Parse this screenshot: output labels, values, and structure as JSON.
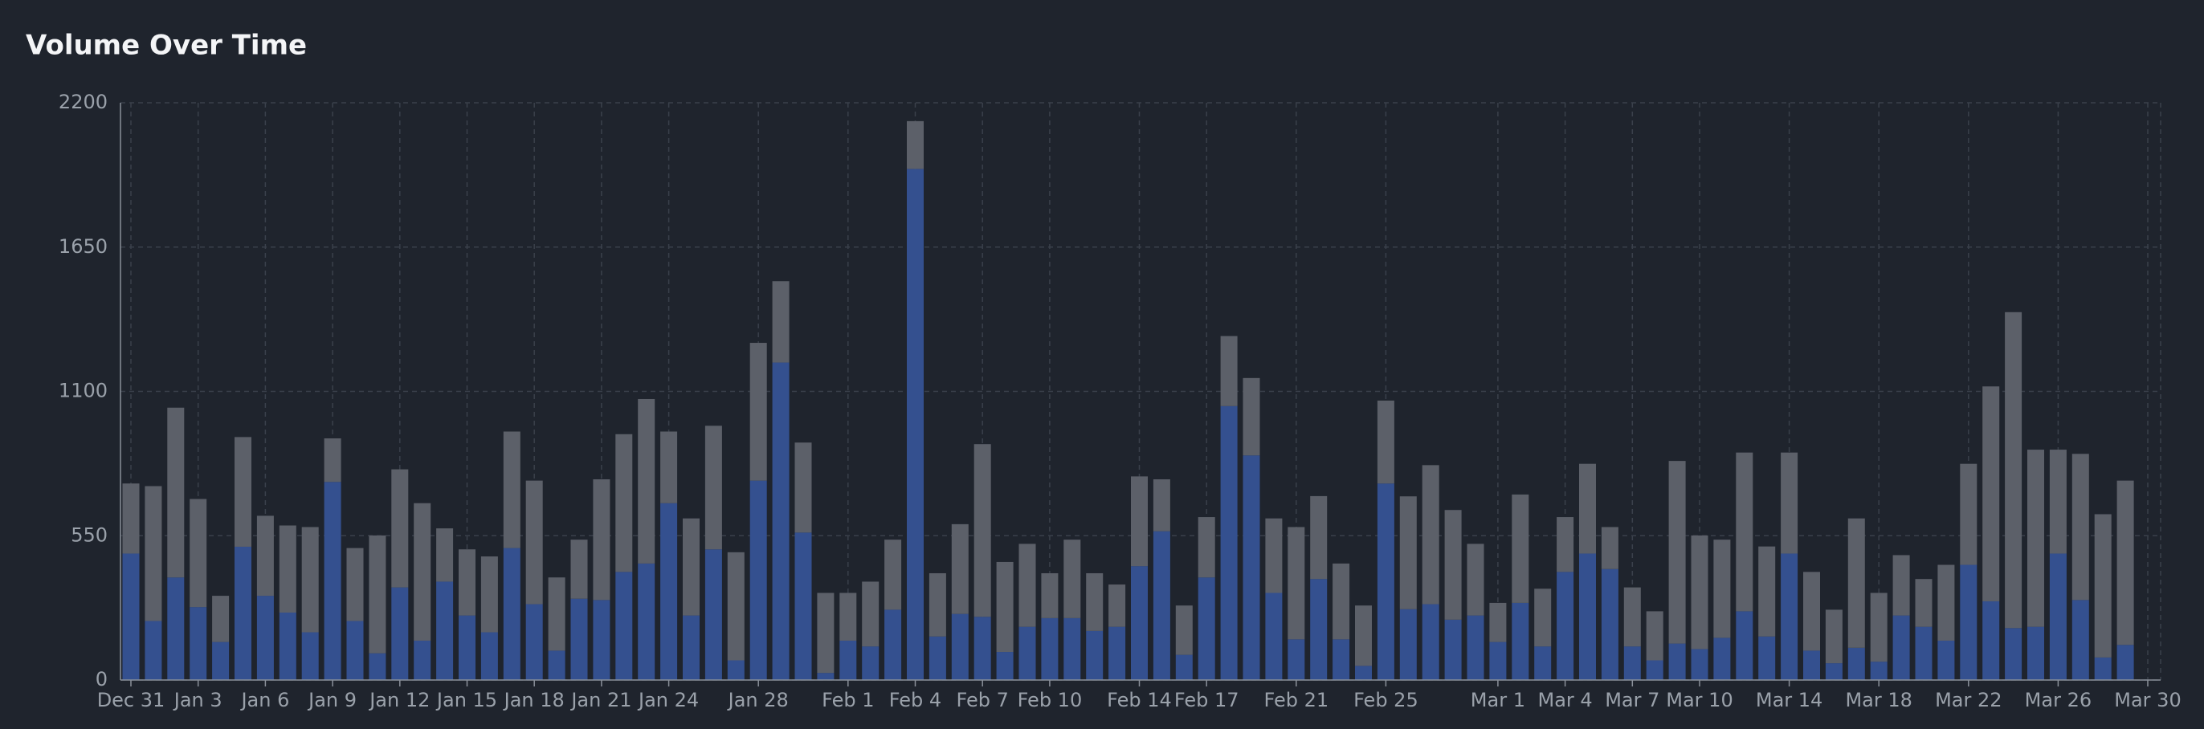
{
  "chart_data": {
    "type": "bar",
    "stacked": true,
    "title": "Volume Over Time",
    "categories": [
      "Dec 31",
      null,
      null,
      "Jan 3",
      null,
      null,
      "Jan 6",
      null,
      null,
      "Jan 9",
      null,
      null,
      "Jan 12",
      null,
      null,
      "Jan 15",
      null,
      null,
      "Jan 18",
      null,
      null,
      "Jan 21",
      null,
      null,
      "Jan 24",
      null,
      null,
      null,
      "Jan 28",
      null,
      null,
      null,
      "Feb 1",
      null,
      null,
      "Feb 4",
      null,
      null,
      "Feb 7",
      null,
      null,
      "Feb 10",
      null,
      null,
      null,
      "Feb 14",
      null,
      null,
      "Feb 17",
      null,
      null,
      null,
      "Feb 21",
      null,
      null,
      null,
      "Feb 25",
      null,
      null,
      null,
      null,
      "Mar 1",
      null,
      null,
      "Mar 4",
      null,
      null,
      "Mar 7",
      null,
      null,
      "Mar 10",
      null,
      null,
      null,
      "Mar 14",
      null,
      null,
      null,
      "Mar 18",
      null,
      null,
      null,
      "Mar 22",
      null,
      null,
      null,
      "Mar 26",
      null,
      null,
      null,
      "Mar 30"
    ],
    "series": [
      {
        "color": "#34508f",
        "values": [
          482,
          225,
          391,
          278,
          145,
          508,
          321,
          257,
          182,
          755,
          225,
          102,
          353,
          150,
          375,
          246,
          182,
          503,
          289,
          112,
          310,
          305,
          412,
          444,
          674,
          246,
          498,
          75,
          760,
          1210,
          562,
          27,
          150,
          128,
          268,
          1948,
          166,
          252,
          241,
          107,
          203,
          236,
          236,
          187,
          203,
          434,
          567,
          96,
          391,
          1044,
          856,
          332,
          155,
          385,
          155,
          54,
          749,
          270,
          289,
          230,
          246,
          145,
          294,
          128,
          412,
          482,
          423,
          128,
          75,
          139,
          118,
          161,
          262,
          166,
          482,
          112,
          64,
          123,
          70,
          246,
          203,
          150,
          439,
          300,
          198,
          203,
          482,
          305,
          86,
          134,
          null
        ]
      },
      {
        "color": "#5c6069",
        "values": [
          267,
          514,
          647,
          412,
          176,
          418,
          305,
          332,
          401,
          166,
          278,
          449,
          450,
          524,
          203,
          252,
          289,
          444,
          471,
          279,
          225,
          460,
          525,
          627,
          273,
          370,
          471,
          412,
          525,
          310,
          343,
          305,
          182,
          247,
          267,
          182,
          241,
          342,
          658,
          343,
          316,
          171,
          299,
          220,
          161,
          342,
          198,
          188,
          230,
          267,
          295,
          284,
          428,
          316,
          289,
          230,
          316,
          430,
          530,
          418,
          273,
          149,
          413,
          220,
          209,
          342,
          160,
          225,
          187,
          696,
          433,
          374,
          605,
          343,
          385,
          300,
          204,
          493,
          262,
          230,
          182,
          289,
          385,
          819,
          1204,
          675,
          396,
          557,
          546,
          626,
          null
        ]
      }
    ],
    "ylim": [
      0,
      2200
    ],
    "yticks": [
      0,
      550,
      1100,
      1650,
      2200
    ],
    "grid": true
  }
}
